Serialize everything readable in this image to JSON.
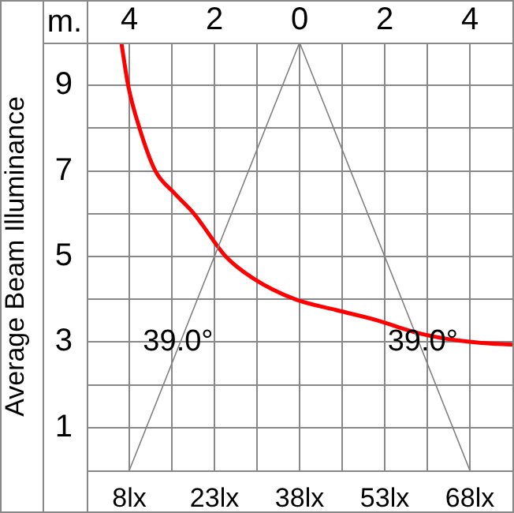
{
  "chart_data": {
    "type": "line",
    "ylabel": "Average Beam Illuminance",
    "x2label": "m.",
    "xlim": [
      0.5,
      75.5
    ],
    "xticks": [
      {
        "value": 8,
        "label": "8lx"
      },
      {
        "value": 23,
        "label": "23lx"
      },
      {
        "value": 38,
        "label": "38lx"
      },
      {
        "value": 53,
        "label": "53lx"
      },
      {
        "value": 68,
        "label": "68lx"
      }
    ],
    "x2lim": [
      -5,
      5
    ],
    "x2ticks": [
      {
        "value": -4,
        "label": "4"
      },
      {
        "value": -3,
        "label": null
      },
      {
        "value": -2,
        "label": "2"
      },
      {
        "value": -1,
        "label": null
      },
      {
        "value": 0,
        "label": "0"
      },
      {
        "value": 1,
        "label": null
      },
      {
        "value": 2,
        "label": "2"
      },
      {
        "value": 3,
        "label": null
      },
      {
        "value": 4,
        "label": "4"
      }
    ],
    "ylim": [
      0,
      10
    ],
    "yticks": [
      {
        "value": 1,
        "label": "1"
      },
      {
        "value": 2,
        "label": null
      },
      {
        "value": 3,
        "label": "3"
      },
      {
        "value": 4,
        "label": null
      },
      {
        "value": 5,
        "label": "5"
      },
      {
        "value": 6,
        "label": null
      },
      {
        "value": 7,
        "label": "7"
      },
      {
        "value": 8,
        "label": null
      },
      {
        "value": 9,
        "label": "9"
      }
    ],
    "grid": true,
    "legend": false,
    "marker": "none",
    "series": [
      {
        "color": "#808080",
        "x": [
          8,
          38,
          68
        ],
        "values": [
          0,
          10,
          0
        ]
      },
      {
        "color": "#ff0000",
        "x": [
          6.6,
          7.8,
          9.8,
          12.6,
          15.8,
          19.4,
          25,
          29.7,
          37.2,
          44.4,
          51.9,
          58,
          62,
          65.8,
          70,
          75.5
        ],
        "values": [
          10,
          9,
          8,
          7,
          6.5,
          6,
          5,
          4.5,
          4,
          3.75,
          3.5,
          3.24,
          3.12,
          3.04,
          2.98,
          2.94
        ]
      }
    ],
    "annotations": [
      {
        "text": "39.0°",
        "x": 16.6,
        "y": 3
      },
      {
        "text": "39.0°",
        "x": 59.7,
        "y": 3
      }
    ]
  }
}
